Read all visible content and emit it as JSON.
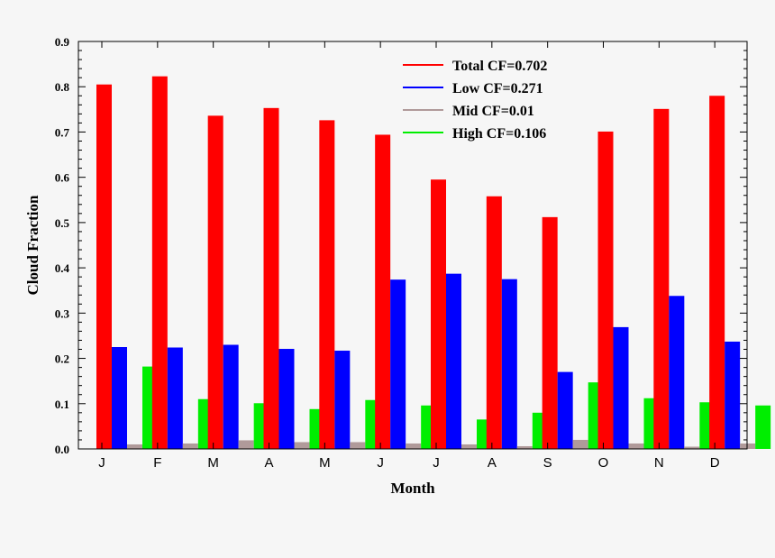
{
  "chart_data": {
    "type": "bar",
    "title": "",
    "xlabel": "Month",
    "ylabel": "Cloud Fraction",
    "ylim": [
      0,
      0.9
    ],
    "yticks": [
      "0.0",
      "0.1",
      "0.2",
      "0.3",
      "0.4",
      "0.5",
      "0.6",
      "0.7",
      "0.8",
      "0.9"
    ],
    "categories": [
      "J",
      "F",
      "M",
      "A",
      "M",
      "J",
      "J",
      "A",
      "S",
      "O",
      "N",
      "D"
    ],
    "legend_position": "top-right",
    "grid": false,
    "series": [
      {
        "name": "Total CF=0.702",
        "color": "#ff0000",
        "values": [
          0.805,
          0.823,
          0.736,
          0.753,
          0.726,
          0.694,
          0.595,
          0.558,
          0.512,
          0.701,
          0.751,
          0.78
        ]
      },
      {
        "name": "Low CF=0.271",
        "color": "#0000ff",
        "values": [
          0.225,
          0.224,
          0.23,
          0.221,
          0.217,
          0.374,
          0.387,
          0.375,
          0.17,
          0.269,
          0.338,
          0.237
        ]
      },
      {
        "name": "Mid CF=0.01",
        "color": "#b09a9a",
        "values": [
          0.01,
          0.012,
          0.019,
          0.015,
          0.015,
          0.012,
          0.01,
          0.006,
          0.02,
          0.012,
          0.005,
          0.012
        ]
      },
      {
        "name": "High CF=0.106",
        "color": "#00ee00",
        "values": [
          0.182,
          0.11,
          0.101,
          0.088,
          0.108,
          0.096,
          0.065,
          0.08,
          0.147,
          0.112,
          0.103,
          0.096
        ]
      }
    ]
  }
}
